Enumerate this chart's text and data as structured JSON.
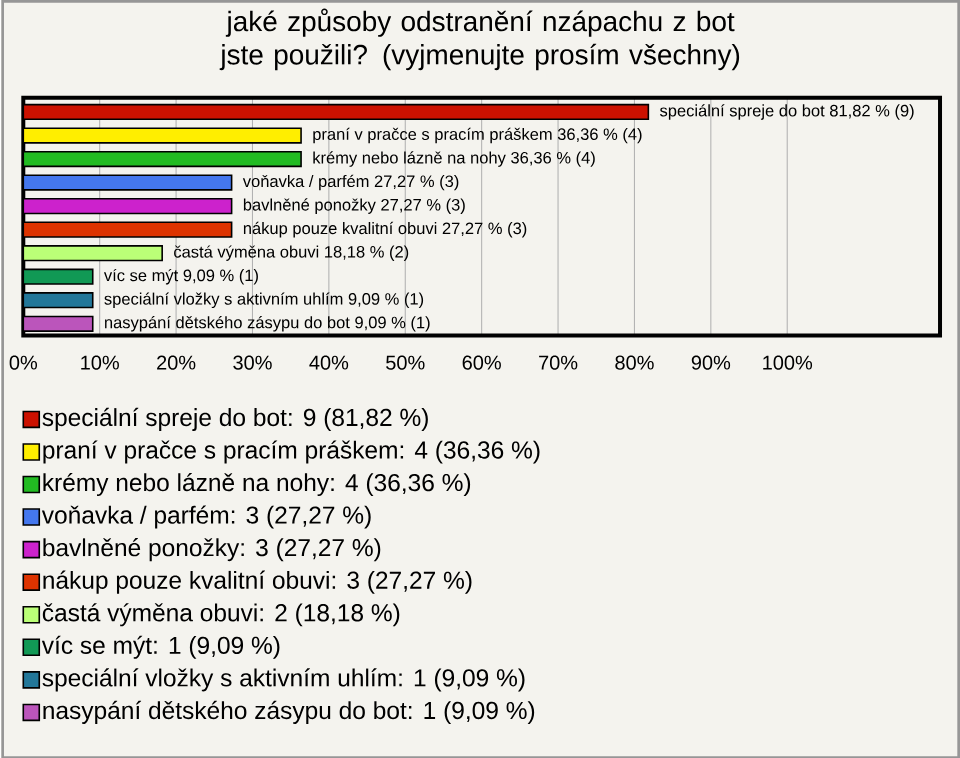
{
  "chart_data": {
    "type": "bar",
    "orientation": "horizontal",
    "title": "jaké způsoby odstranění nzápachu z bot jste použili? (vyjmenujte prosím všechny)",
    "categories": [
      null,
      null,
      null,
      null,
      null,
      null,
      null,
      null,
      null,
      null
    ],
    "xlim": [
      0,
      120
    ],
    "xticks": [
      {
        "value": 0,
        "label": "0%"
      },
      {
        "value": 10,
        "label": "10%"
      },
      {
        "value": 20,
        "label": "20%"
      },
      {
        "value": 30,
        "label": "30%"
      },
      {
        "value": 40,
        "label": "40%"
      },
      {
        "value": 50,
        "label": "50%"
      },
      {
        "value": 60,
        "label": "60%"
      },
      {
        "value": 70,
        "label": "70%"
      },
      {
        "value": 80,
        "label": "80%"
      },
      {
        "value": 90,
        "label": "90%"
      },
      {
        "value": 100,
        "label": "100%"
      }
    ],
    "grid": "x",
    "legend": "bottom",
    "series": [
      {
        "name": "speciální spreje do bot: 9 (81,82 %)",
        "color": "#cc1100",
        "values": [
          81.82,
          null,
          null,
          null,
          null,
          null,
          null,
          null,
          null,
          null
        ],
        "value_labels": [
          "speciální spreje do bot 81,82 % (9)",
          null,
          null,
          null,
          null,
          null,
          null,
          null,
          null,
          null
        ]
      },
      {
        "name": "praní v pračce s pracím práškem: 4 (36,36 %)",
        "color": "#ffee00",
        "values": [
          null,
          36.36,
          null,
          null,
          null,
          null,
          null,
          null,
          null,
          null
        ],
        "value_labels": [
          null,
          "praní v pračce s pracím práškem 36,36 % (4)",
          null,
          null,
          null,
          null,
          null,
          null,
          null,
          null
        ]
      },
      {
        "name": "krémy nebo lázně na nohy: 4 (36,36 %)",
        "color": "#22bb22",
        "values": [
          null,
          null,
          36.36,
          null,
          null,
          null,
          null,
          null,
          null,
          null
        ],
        "value_labels": [
          null,
          null,
          "krémy nebo lázně na nohy 36,36 % (4)",
          null,
          null,
          null,
          null,
          null,
          null,
          null
        ]
      },
      {
        "name": "voňavka / parfém: 3 (27,27 %)",
        "color": "#4477ee",
        "values": [
          null,
          null,
          null,
          27.27,
          null,
          null,
          null,
          null,
          null,
          null
        ],
        "value_labels": [
          null,
          null,
          null,
          "voňavka / parfém 27,27 % (3)",
          null,
          null,
          null,
          null,
          null,
          null
        ]
      },
      {
        "name": "bavlněné ponožky: 3 (27,27 %)",
        "color": "#cc22cc",
        "values": [
          null,
          null,
          null,
          null,
          27.27,
          null,
          null,
          null,
          null,
          null
        ],
        "value_labels": [
          null,
          null,
          null,
          null,
          "bavlněné ponožky 27,27 % (3)",
          null,
          null,
          null,
          null,
          null
        ]
      },
      {
        "name": "nákup pouze kvalitní obuvi: 3 (27,27 %)",
        "color": "#dd3300",
        "values": [
          null,
          null,
          null,
          null,
          null,
          27.27,
          null,
          null,
          null,
          null
        ],
        "value_labels": [
          null,
          null,
          null,
          null,
          null,
          "nákup pouze kvalitní obuvi 27,27 % (3)",
          null,
          null,
          null,
          null
        ]
      },
      {
        "name": "častá výměna obuvi: 2 (18,18 %)",
        "color": "#bbff77",
        "values": [
          null,
          null,
          null,
          null,
          null,
          null,
          18.18,
          null,
          null,
          null
        ],
        "value_labels": [
          null,
          null,
          null,
          null,
          null,
          null,
          "častá výměna obuvi 18,18 % (2)",
          null,
          null,
          null
        ]
      },
      {
        "name": "víc se mýt: 1 (9,09 %)",
        "color": "#119955",
        "values": [
          null,
          null,
          null,
          null,
          null,
          null,
          null,
          9.09,
          null,
          null
        ],
        "value_labels": [
          null,
          null,
          null,
          null,
          null,
          null,
          null,
          "víc se mýt 9,09 % (1)",
          null,
          null
        ]
      },
      {
        "name": "speciální vložky s aktivním uhlím: 1 (9,09 %)",
        "color": "#227799",
        "values": [
          null,
          null,
          null,
          null,
          null,
          null,
          null,
          null,
          9.09,
          null
        ],
        "value_labels": [
          null,
          null,
          null,
          null,
          null,
          null,
          null,
          null,
          "speciální vložky s aktivním uhlím 9,09 % (1)",
          null
        ]
      },
      {
        "name": "nasypání dětského zásypu do bot: 1 (9,09 %)",
        "color": "#bb55bb",
        "values": [
          null,
          null,
          null,
          null,
          null,
          null,
          null,
          null,
          null,
          9.09
        ],
        "value_labels": [
          null,
          null,
          null,
          null,
          null,
          null,
          null,
          null,
          null,
          "nasypání dětského zásypu do bot 9,09 % (1)"
        ]
      }
    ]
  }
}
